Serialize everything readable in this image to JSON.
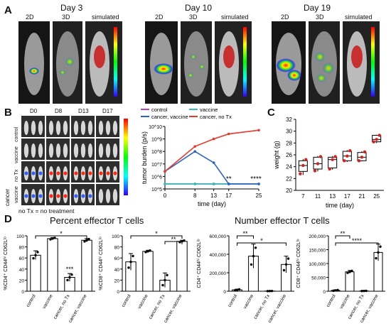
{
  "panel_labels": {
    "a": "A",
    "b": "B",
    "c": "C",
    "d": "D"
  },
  "panelA": {
    "days": [
      "Day 3",
      "Day 10",
      "Day 19"
    ],
    "subs": [
      "2D",
      "3D",
      "simulated"
    ]
  },
  "panelB": {
    "cols": [
      "D0",
      "D8",
      "D13",
      "D17"
    ],
    "rows": [
      "control",
      "vaccine",
      "no Tx",
      "vaccine"
    ],
    "group": "cancer",
    "footnote": "no Tx = no treatment"
  },
  "chart_data": [
    {
      "type": "line",
      "ylabel": "tumor burden (p/s)",
      "xlabel": "time (day)",
      "x": [
        0,
        8,
        13,
        17,
        25
      ],
      "xticks": [
        "0",
        "8",
        "13",
        "17",
        "25"
      ],
      "yticks": [
        "10^5",
        "10^6",
        "10^7",
        "10^8",
        "10^9",
        "10^10"
      ],
      "ylim_log10": [
        5,
        10
      ],
      "series": [
        {
          "name": "control",
          "color": "#c13fc1",
          "values": [
            5.4,
            5.4,
            5.4,
            5.4,
            5.4
          ]
        },
        {
          "name": "vaccine",
          "color": "#2fc1b0",
          "values": [
            5.4,
            5.4,
            5.4,
            5.4,
            5.4
          ]
        },
        {
          "name": "cancer, vaccine",
          "color": "#2b63c9",
          "values": [
            6.4,
            8.0,
            7.1,
            5.4,
            5.4
          ]
        },
        {
          "name": "cancer, no Tx",
          "color": "#e8392a",
          "values": [
            6.4,
            8.4,
            9.0,
            9.4,
            9.7
          ]
        }
      ],
      "annotations": [
        "**",
        "****"
      ]
    },
    {
      "type": "box",
      "ylabel": "weight (g)",
      "xlabel": "time (day)",
      "categories": [
        "7",
        "11",
        "13",
        "17",
        "21",
        "25"
      ],
      "ylim": [
        20,
        32
      ],
      "yticks": [
        "20",
        "22",
        "24",
        "26",
        "28",
        "30",
        "32"
      ],
      "color": "#d62020",
      "boxes": [
        {
          "low": 22.6,
          "q1": 23.2,
          "med": 24.2,
          "q3": 25.0,
          "high": 25.3,
          "points": [
            22.8,
            24.2,
            25.2
          ]
        },
        {
          "low": 23.2,
          "q1": 23.6,
          "med": 24.5,
          "q3": 25.6,
          "high": 25.8,
          "points": [
            23.3,
            24.5,
            25.7
          ]
        },
        {
          "low": 23.5,
          "q1": 23.8,
          "med": 25.2,
          "q3": 25.6,
          "high": 25.8,
          "points": [
            23.6,
            25.2,
            25.7
          ]
        },
        {
          "low": 24.8,
          "q1": 25.0,
          "med": 25.8,
          "q3": 26.6,
          "high": 26.8,
          "points": [
            25.0,
            25.8,
            26.7
          ]
        },
        {
          "low": 24.9,
          "q1": 25.0,
          "med": 25.6,
          "q3": 26.4,
          "high": 26.6,
          "points": [
            25.0,
            25.6,
            26.5
          ]
        },
        {
          "low": 28.0,
          "q1": 28.2,
          "med": 28.6,
          "q3": 29.3,
          "high": 29.4,
          "points": [
            28.2,
            28.6,
            29.3
          ]
        }
      ]
    },
    {
      "type": "bar",
      "ylabel": "%CD4⁺ CD44ʰⁱ CD62Lˡᵒ",
      "categories": [
        "control",
        "vaccine",
        "cancer, no Tx",
        "cancer, vaccine"
      ],
      "values": [
        65,
        95,
        25,
        92
      ],
      "errors": [
        8,
        2,
        7,
        3
      ],
      "ylim": [
        0,
        100
      ],
      "yticks": [
        "0",
        "20",
        "40",
        "60",
        "80",
        "100"
      ],
      "annotations": [
        "*",
        "***"
      ]
    },
    {
      "type": "bar",
      "ylabel": "%CD8⁺ CD44ʰⁱ CD62Lˡᵒ",
      "categories": [
        "control",
        "vaccine",
        "cancer, no Tx",
        "cancer, vaccine"
      ],
      "values": [
        53,
        72,
        20,
        90
      ],
      "errors": [
        15,
        2,
        13,
        2
      ],
      "ylim": [
        0,
        100
      ],
      "yticks": [
        "0",
        "20",
        "40",
        "60",
        "80",
        "100"
      ],
      "annotations": [
        "*",
        "**"
      ]
    },
    {
      "type": "bar",
      "ylabel": "CD4⁺ CD44ʰⁱ CD62Lˡᵒ",
      "categories": [
        "control",
        "vaccine",
        "cancer, no Tx",
        "cancer, vaccine"
      ],
      "values": [
        15000,
        380000,
        2000,
        290000
      ],
      "errors": [
        8000,
        130000,
        1000,
        90000
      ],
      "ylim": [
        0,
        600000
      ],
      "yticks": [
        "0",
        "200,000",
        "400,000",
        "600,000"
      ],
      "annotations": [
        "**",
        "*"
      ]
    },
    {
      "type": "bar",
      "ylabel": "CD8⁺ CD44ʰⁱ CD62Lˡᵒ",
      "categories": [
        "control",
        "vaccine",
        "cancer, no Tx",
        "cancer, vaccine"
      ],
      "values": [
        3000,
        70000,
        1000,
        140000
      ],
      "errors": [
        2000,
        5000,
        500,
        30000
      ],
      "ylim": [
        0,
        200000
      ],
      "yticks": [
        "0",
        "50,000",
        "100,000",
        "150,000",
        "200,000"
      ],
      "annotations": [
        "**",
        "****"
      ]
    }
  ],
  "panelD": {
    "title_left": "Percent effector T cells",
    "title_right": "Number effector T cells"
  }
}
